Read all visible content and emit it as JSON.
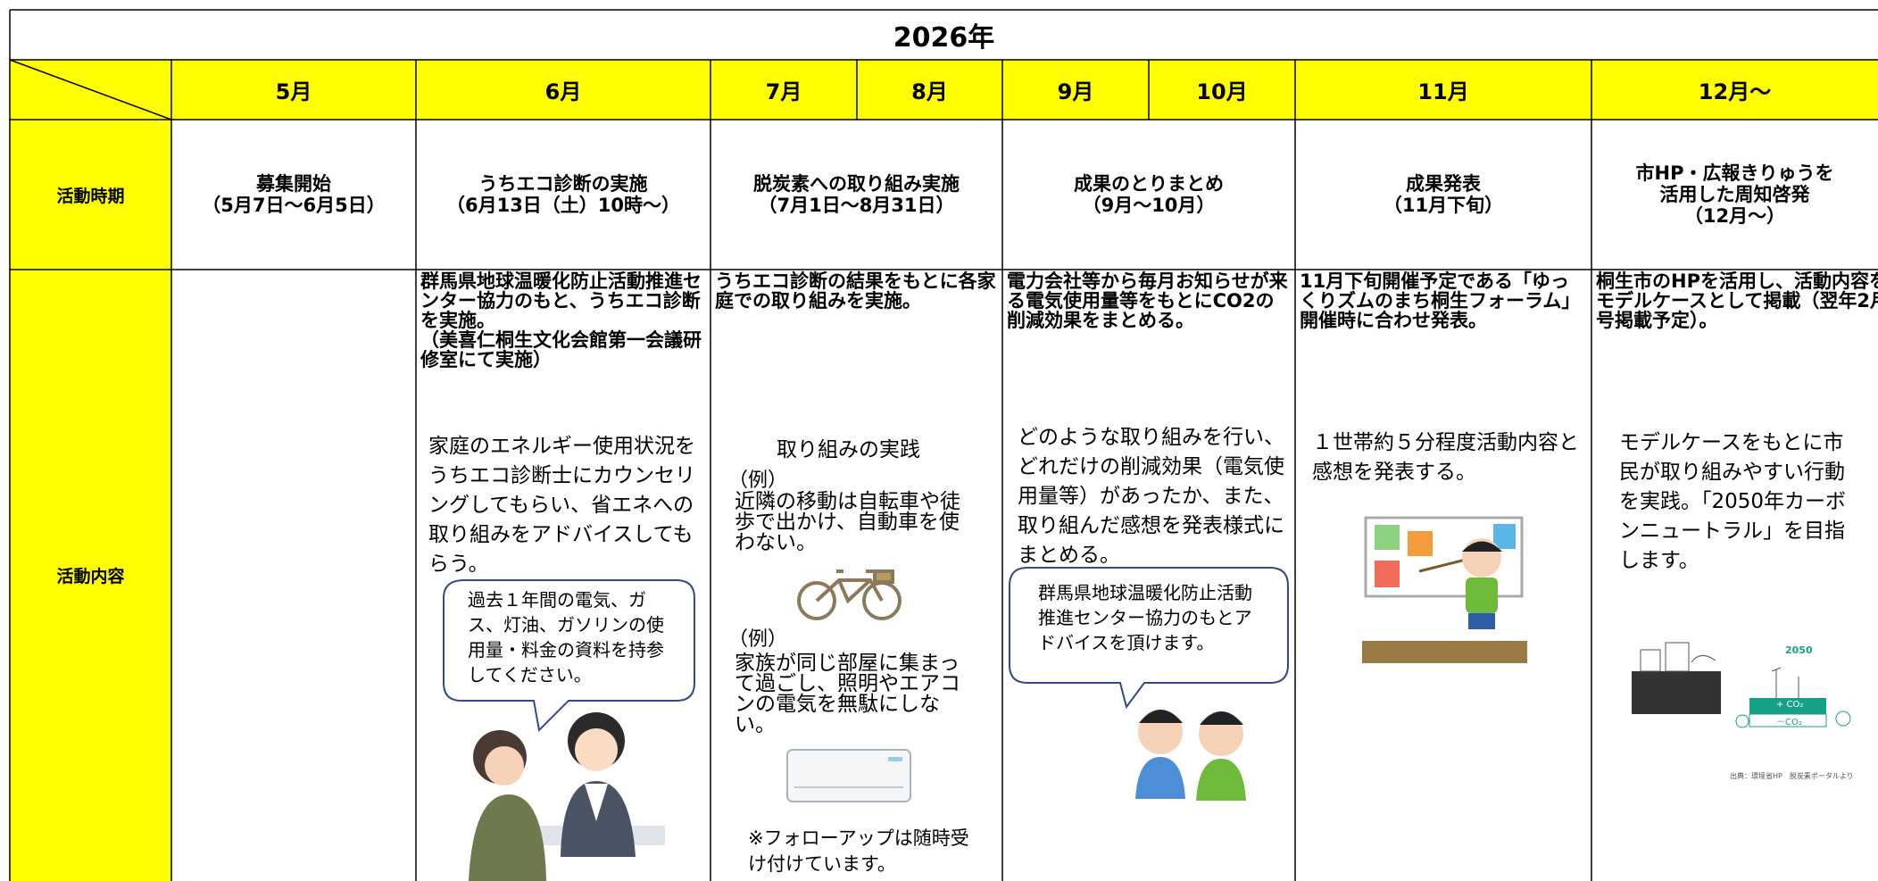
{
  "header": {
    "title": "2026年"
  },
  "table": {
    "months": [
      "5月",
      "6月",
      "7月",
      "8月",
      "9月",
      "10月",
      "11月",
      "12月～"
    ],
    "rows": [
      {
        "label": "活動時期",
        "cells": [
          "募集開始\n（5月7日～6月5日）",
          "うちエコ診断の実施\n（6月13日（土）10時～）",
          "脱炭素への取り組み実施\n（7月1日～8月31日）",
          "成果のとりまとめ\n（9月～10月）",
          "成果発表\n（11月下旬）",
          "市HP・広報きりゅうを\n活用した周知啓発\n（12月～）"
        ]
      },
      {
        "label": "活動内容",
        "cells": [
          {
            "heading": "群馬県地球温暖化防止活動推進センター協力のもと、うちエコ診断を実施。\n（美喜仁桐生文化会館第一会議研修室にて実施）",
            "text": "家庭のエネルギー使用状況をうちエコ診断士にカウンセリングしてもらい、省エネへの取り組みをアドバイスしてもらう。",
            "bubble": "過去１年間の電気、ガス、灯油、ガソリンの使用量・料金の資料を持参してください。"
          },
          {
            "heading": "うちエコ診断の結果をもとに各家庭での取り組みを実施。",
            "subtitle": "取り組みの実践",
            "examples": [
              {
                "label": "（例）",
                "text": "近隣の移動は自転車や徒歩で出かけ、自動車を使わない。"
              },
              {
                "label": "（例）",
                "text": "家族が同じ部屋に集まって過ごし、照明やエアコンの電気を無駄にしない。"
              }
            ],
            "note": "※フォローアップは随時受け付けています。"
          },
          {
            "heading": "電力会社等から毎月お知らせが来る電気使用量等をもとにCO2の削減効果をまとめる。",
            "text": "どのような取り組みを行い、どれだけの削減効果（電気使用量等）があったか、また、取り組んだ感想を発表様式にまとめる。",
            "bubble": "群馬県地球温暖化防止活動推進センター協力のもとアドバイスを頂けます。"
          },
          {
            "heading": "11月下旬開催予定である「ゆっくりズムのまち桐生フォーラム」開催時に合わせ発表。",
            "text": "１世帯約５分程度活動内容と感想を発表する。"
          },
          {
            "heading": "桐生市のHPを活用し、活動内容をモデルケースとして掲載（翌年2月号掲載予定）。",
            "text": "モデルケースをもとに市民が取り組みやすい行動を実践。「2050年カーボンニュートラル」を目指します。",
            "image_labels": [
              "2050",
              "+ CO₂",
              "－CO₂"
            ],
            "credit": "出典：環境省HP　脱炭素ポータルより"
          }
        ]
      }
    ]
  }
}
